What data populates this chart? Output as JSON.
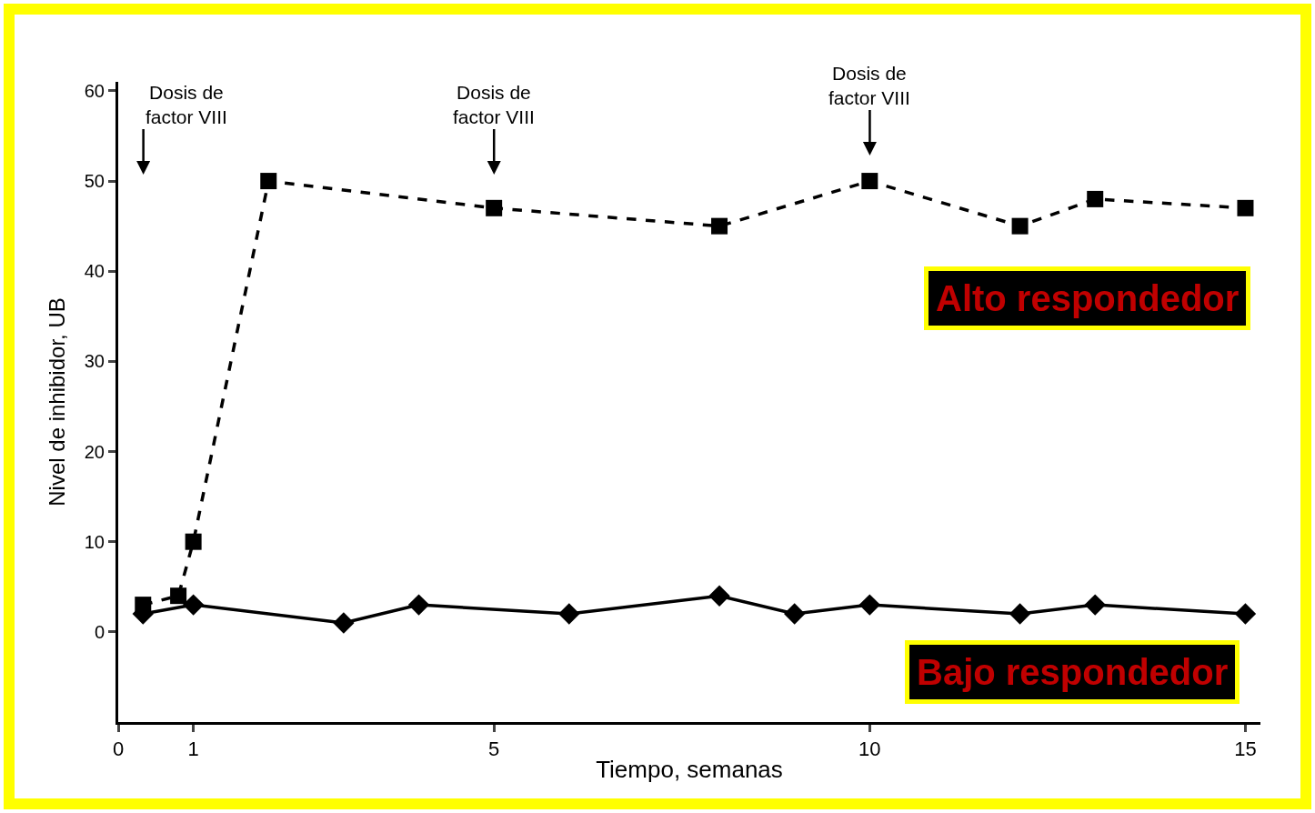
{
  "chart_data": {
    "type": "line",
    "xlabel": "Tiempo, semanas",
    "ylabel": "Nivel de inhibidor, UB",
    "xlim": [
      0,
      15.2
    ],
    "xticks": [
      0,
      1,
      5,
      10,
      15
    ],
    "ylim": [
      -10,
      61
    ],
    "yticks": [
      0,
      10,
      20,
      30,
      40,
      50,
      60
    ],
    "series": [
      {
        "name": "Alto respondedor",
        "color": "#000000",
        "marker": "square",
        "line_style": "dashed",
        "x": [
          0.33,
          0.8,
          1,
          2,
          5,
          8,
          10,
          12,
          13,
          15
        ],
        "values": [
          3,
          4,
          10,
          50,
          47,
          45,
          50,
          45,
          48,
          47
        ]
      },
      {
        "name": "Bajo respondedor",
        "color": "#000000",
        "marker": "diamond",
        "line_style": "solid",
        "x": [
          0.33,
          1,
          3,
          4,
          6,
          8,
          9,
          10,
          12,
          13,
          15
        ],
        "values": [
          2,
          3,
          1,
          3,
          2,
          4,
          2,
          3,
          2,
          3,
          2
        ]
      }
    ],
    "annotations": [
      "Dosis de\nfactor VIII",
      "Dosis de\nfactor VIII",
      "Dosis de\nfactor VIII"
    ]
  }
}
